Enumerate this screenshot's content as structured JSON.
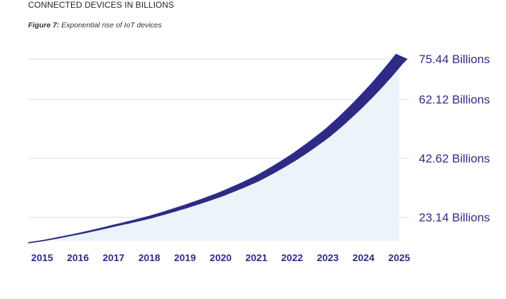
{
  "header": {
    "title": "CONNECTED DEVICES IN BILLIONS"
  },
  "caption": {
    "figure_label": "Figure 7:",
    "text": " Exponential rise of IoT devices"
  },
  "colors": {
    "band": "#2e2b86",
    "fill": "#edf4f9",
    "grid": "#cfe2ee",
    "label": "#2e2b86"
  },
  "chart_data": {
    "type": "area",
    "title": "CONNECTED DEVICES IN BILLIONS",
    "subtitle": "Figure 7: Exponential rise of IoT devices",
    "xlabel": "",
    "ylabel": "",
    "categories": [
      "2015",
      "2016",
      "2017",
      "2018",
      "2019",
      "2020",
      "2021",
      "2022",
      "2023",
      "2024",
      "2025"
    ],
    "y_tick_values": [
      23.14,
      42.62,
      62.12,
      75.44
    ],
    "y_tick_labels": [
      "23.14 Billions",
      "42.62 Billions",
      "62.12 Billions",
      "75.44 Billions"
    ],
    "series": [
      {
        "values": [
          15.41,
          17.68,
          20.35,
          23.14,
          26.66,
          30.73,
          35.82,
          42.62,
          51.11,
          62.12,
          75.44
        ]
      }
    ],
    "ylim": [
      15.41,
      75.44
    ],
    "grid": true,
    "y_axis_position": "right"
  }
}
